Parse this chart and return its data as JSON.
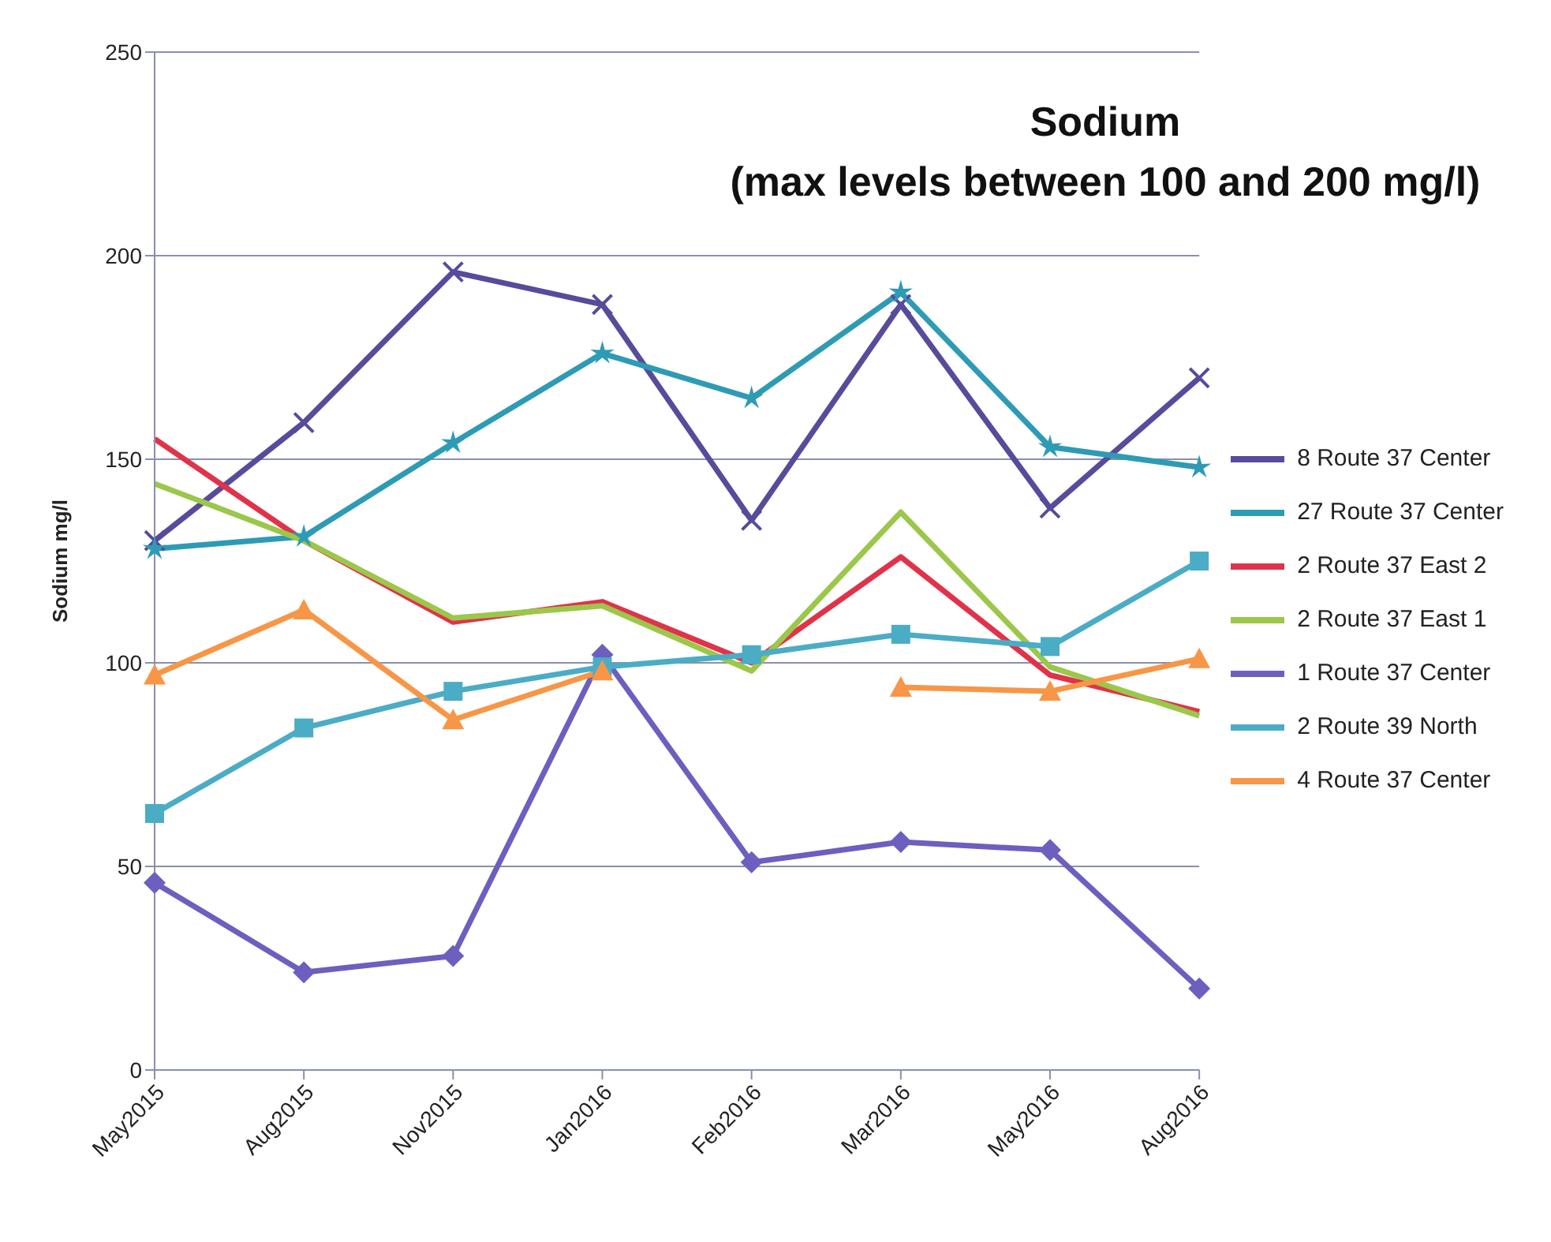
{
  "chart_data": {
    "type": "line",
    "title": "Sodium",
    "subtitle": "(max levels between 100 and 200 mg/l)",
    "ylabel": "Sodium mg/l",
    "categories": [
      "May2015",
      "Aug2015",
      "Nov2015",
      "Jan2016",
      "Feb2016",
      "Mar2016",
      "May2016",
      "Aug2016"
    ],
    "ylim": [
      0,
      250
    ],
    "yticks": [
      0,
      50,
      100,
      150,
      200,
      250
    ],
    "grid": "y",
    "legend": "right",
    "series": [
      {
        "name": "8 Route 37 Center",
        "color": "#574b9b",
        "marker": "cross",
        "values": [
          130,
          159,
          196,
          188,
          135,
          188,
          138,
          170
        ]
      },
      {
        "name": "27 Route 37 Center",
        "color": "#2e9bb5",
        "marker": "star",
        "values": [
          128,
          131,
          154,
          176,
          165,
          191,
          153,
          148
        ]
      },
      {
        "name": "2 Route 37 East 2",
        "color": "#e0334a",
        "marker": "none",
        "values": [
          155,
          130,
          110,
          115,
          100,
          126,
          97,
          88
        ]
      },
      {
        "name": "2 Route 37 East 1",
        "color": "#9bc74a",
        "marker": "none",
        "values": [
          144,
          130,
          111,
          114,
          98,
          137,
          99,
          87
        ]
      },
      {
        "name": "1 Route 37 Center",
        "color": "#6c5fbf",
        "marker": "diamond",
        "values": [
          46,
          24,
          28,
          102,
          51,
          56,
          54,
          20
        ]
      },
      {
        "name": "2 Route 39 North",
        "color": "#4bacc6",
        "marker": "square",
        "values": [
          63,
          84,
          93,
          99,
          102,
          107,
          104,
          125
        ]
      },
      {
        "name": "4 Route 37 Center",
        "color": "#f79646",
        "marker": "triangle",
        "values": [
          97,
          113,
          86,
          98,
          null,
          94,
          93,
          101
        ]
      }
    ]
  }
}
